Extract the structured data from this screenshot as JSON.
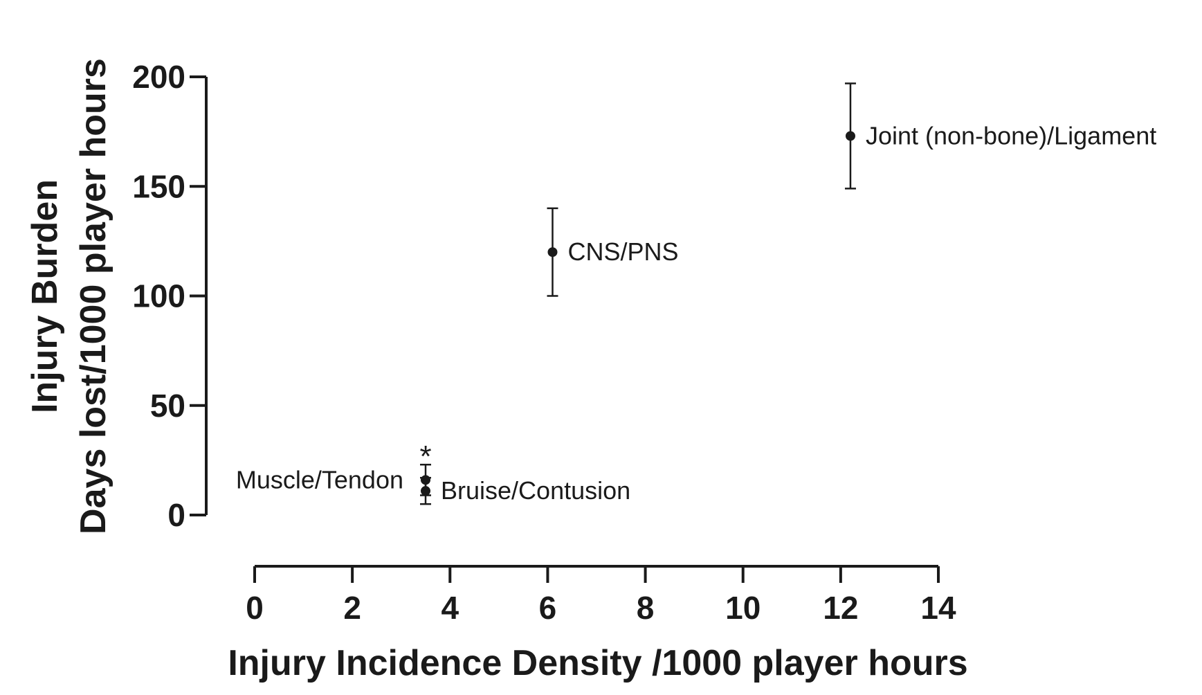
{
  "chart_data": {
    "type": "scatter",
    "xlabel": "Injury Incidence Density /1000 player hours",
    "ylabel_line1": "Injury Burden",
    "ylabel_line2": "Days lost/1000 player hours",
    "xlim": [
      0,
      14
    ],
    "ylim": [
      0,
      200
    ],
    "xticks": [
      0,
      2,
      4,
      6,
      8,
      10,
      12,
      14
    ],
    "yticks": [
      0,
      50,
      100,
      150,
      200
    ],
    "grid": false,
    "points": [
      {
        "label": "Joint (non-bone)/Ligament",
        "x": 12.2,
        "y": 173,
        "y_low": 149,
        "y_high": 197,
        "label_side": "right"
      },
      {
        "label": "CNS/PNS",
        "x": 6.1,
        "y": 120,
        "y_low": 100,
        "y_high": 140,
        "label_side": "right"
      },
      {
        "label": "Muscle/Tendon",
        "x": 3.5,
        "y": 16,
        "y_low": 9,
        "y_high": 23,
        "label_side": "left"
      },
      {
        "label": "Bruise/Contusion",
        "x": 3.5,
        "y": 11,
        "y_low": 5,
        "y_high": 17,
        "label_side": "right"
      }
    ],
    "annotations": [
      {
        "text": "*",
        "x": 3.5,
        "y": 31
      }
    ]
  }
}
